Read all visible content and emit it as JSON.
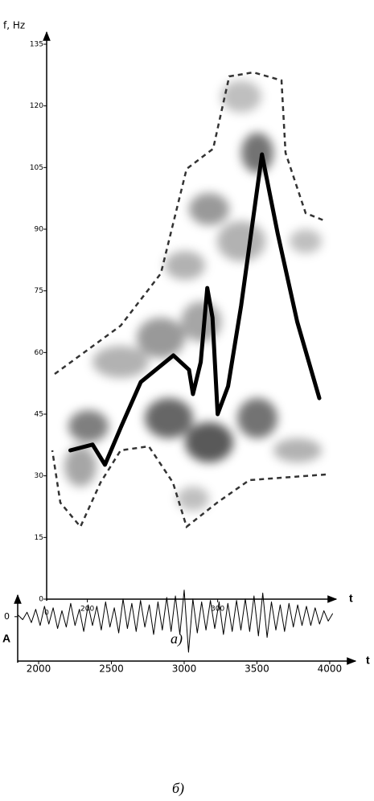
{
  "chart_data": [
    {
      "type": "line",
      "y_label": "f, Hz",
      "x_label": "t",
      "origin_label": "0",
      "caption": "а)",
      "x": [
        187,
        204,
        213.5,
        226,
        241,
        266,
        278,
        281,
        287,
        292,
        296,
        300,
        308,
        318,
        334,
        346,
        361,
        378
      ],
      "series": [
        {
          "color": "#000000",
          "values": [
            36.2,
            37.6,
            32.7,
            42,
            52.8,
            59.3,
            55.8,
            49.9,
            57.7,
            75.7,
            68.5,
            45,
            51.8,
            71.4,
            108.2,
            89,
            67.5,
            48.9
          ]
        }
      ],
      "xlim": [
        170,
        386
      ],
      "ylim": [
        0,
        135
      ],
      "xticks": [
        200,
        300
      ],
      "yticks": [
        0,
        15,
        30,
        45,
        60,
        75,
        90,
        105,
        120,
        135
      ]
    },
    {
      "type": "line",
      "y_label": "A",
      "x_label": "t",
      "caption": "б)",
      "x": [
        1860,
        1890,
        1920,
        1950,
        1980,
        2010,
        2040,
        2070,
        2100,
        2130,
        2160,
        2190,
        2220,
        2250,
        2280,
        2310,
        2340,
        2370,
        2400,
        2430,
        2460,
        2490,
        2520,
        2550,
        2580,
        2610,
        2640,
        2670,
        2700,
        2730,
        2760,
        2790,
        2820,
        2850,
        2880,
        2910,
        2940,
        2970,
        3000,
        3030,
        3060,
        3090,
        3120,
        3150,
        3180,
        3210,
        3240,
        3270,
        3300,
        3330,
        3360,
        3390,
        3420,
        3450,
        3480,
        3510,
        3540,
        3570,
        3600,
        3630,
        3660,
        3690,
        3720,
        3750,
        3780,
        3810,
        3840,
        3870,
        3900,
        3930,
        3960,
        3990,
        4020
      ],
      "series": [
        {
          "color": "#000000",
          "values": [
            0.05,
            -0.1,
            0.15,
            -0.2,
            0.25,
            -0.3,
            0.35,
            -0.25,
            0.3,
            -0.4,
            0.2,
            -0.35,
            0.45,
            -0.3,
            0.25,
            -0.5,
            0.4,
            -0.3,
            0.35,
            -0.45,
            0.5,
            -0.35,
            0.3,
            -0.55,
            0.6,
            -0.4,
            0.45,
            -0.5,
            0.55,
            -0.35,
            0.4,
            -0.6,
            0.5,
            -0.45,
            0.65,
            -0.5,
            0.7,
            -0.6,
            0.9,
            -1.2,
            0.6,
            -0.55,
            0.5,
            -0.45,
            0.55,
            -0.4,
            0.5,
            -0.6,
            0.45,
            -0.5,
            0.55,
            -0.45,
            0.6,
            -0.5,
            0.7,
            -0.65,
            0.8,
            -0.7,
            0.5,
            -0.45,
            0.4,
            -0.5,
            0.45,
            -0.35,
            0.4,
            -0.3,
            0.35,
            -0.3,
            0.3,
            -0.25,
            0.2,
            -0.15,
            0.1
          ]
        }
      ],
      "xlim": [
        1856,
        4111
      ],
      "ylim": [
        -1.5,
        1
      ],
      "xticks": [
        2000,
        2500,
        3000,
        3500,
        4000
      ],
      "yticks": [
        0
      ]
    }
  ]
}
